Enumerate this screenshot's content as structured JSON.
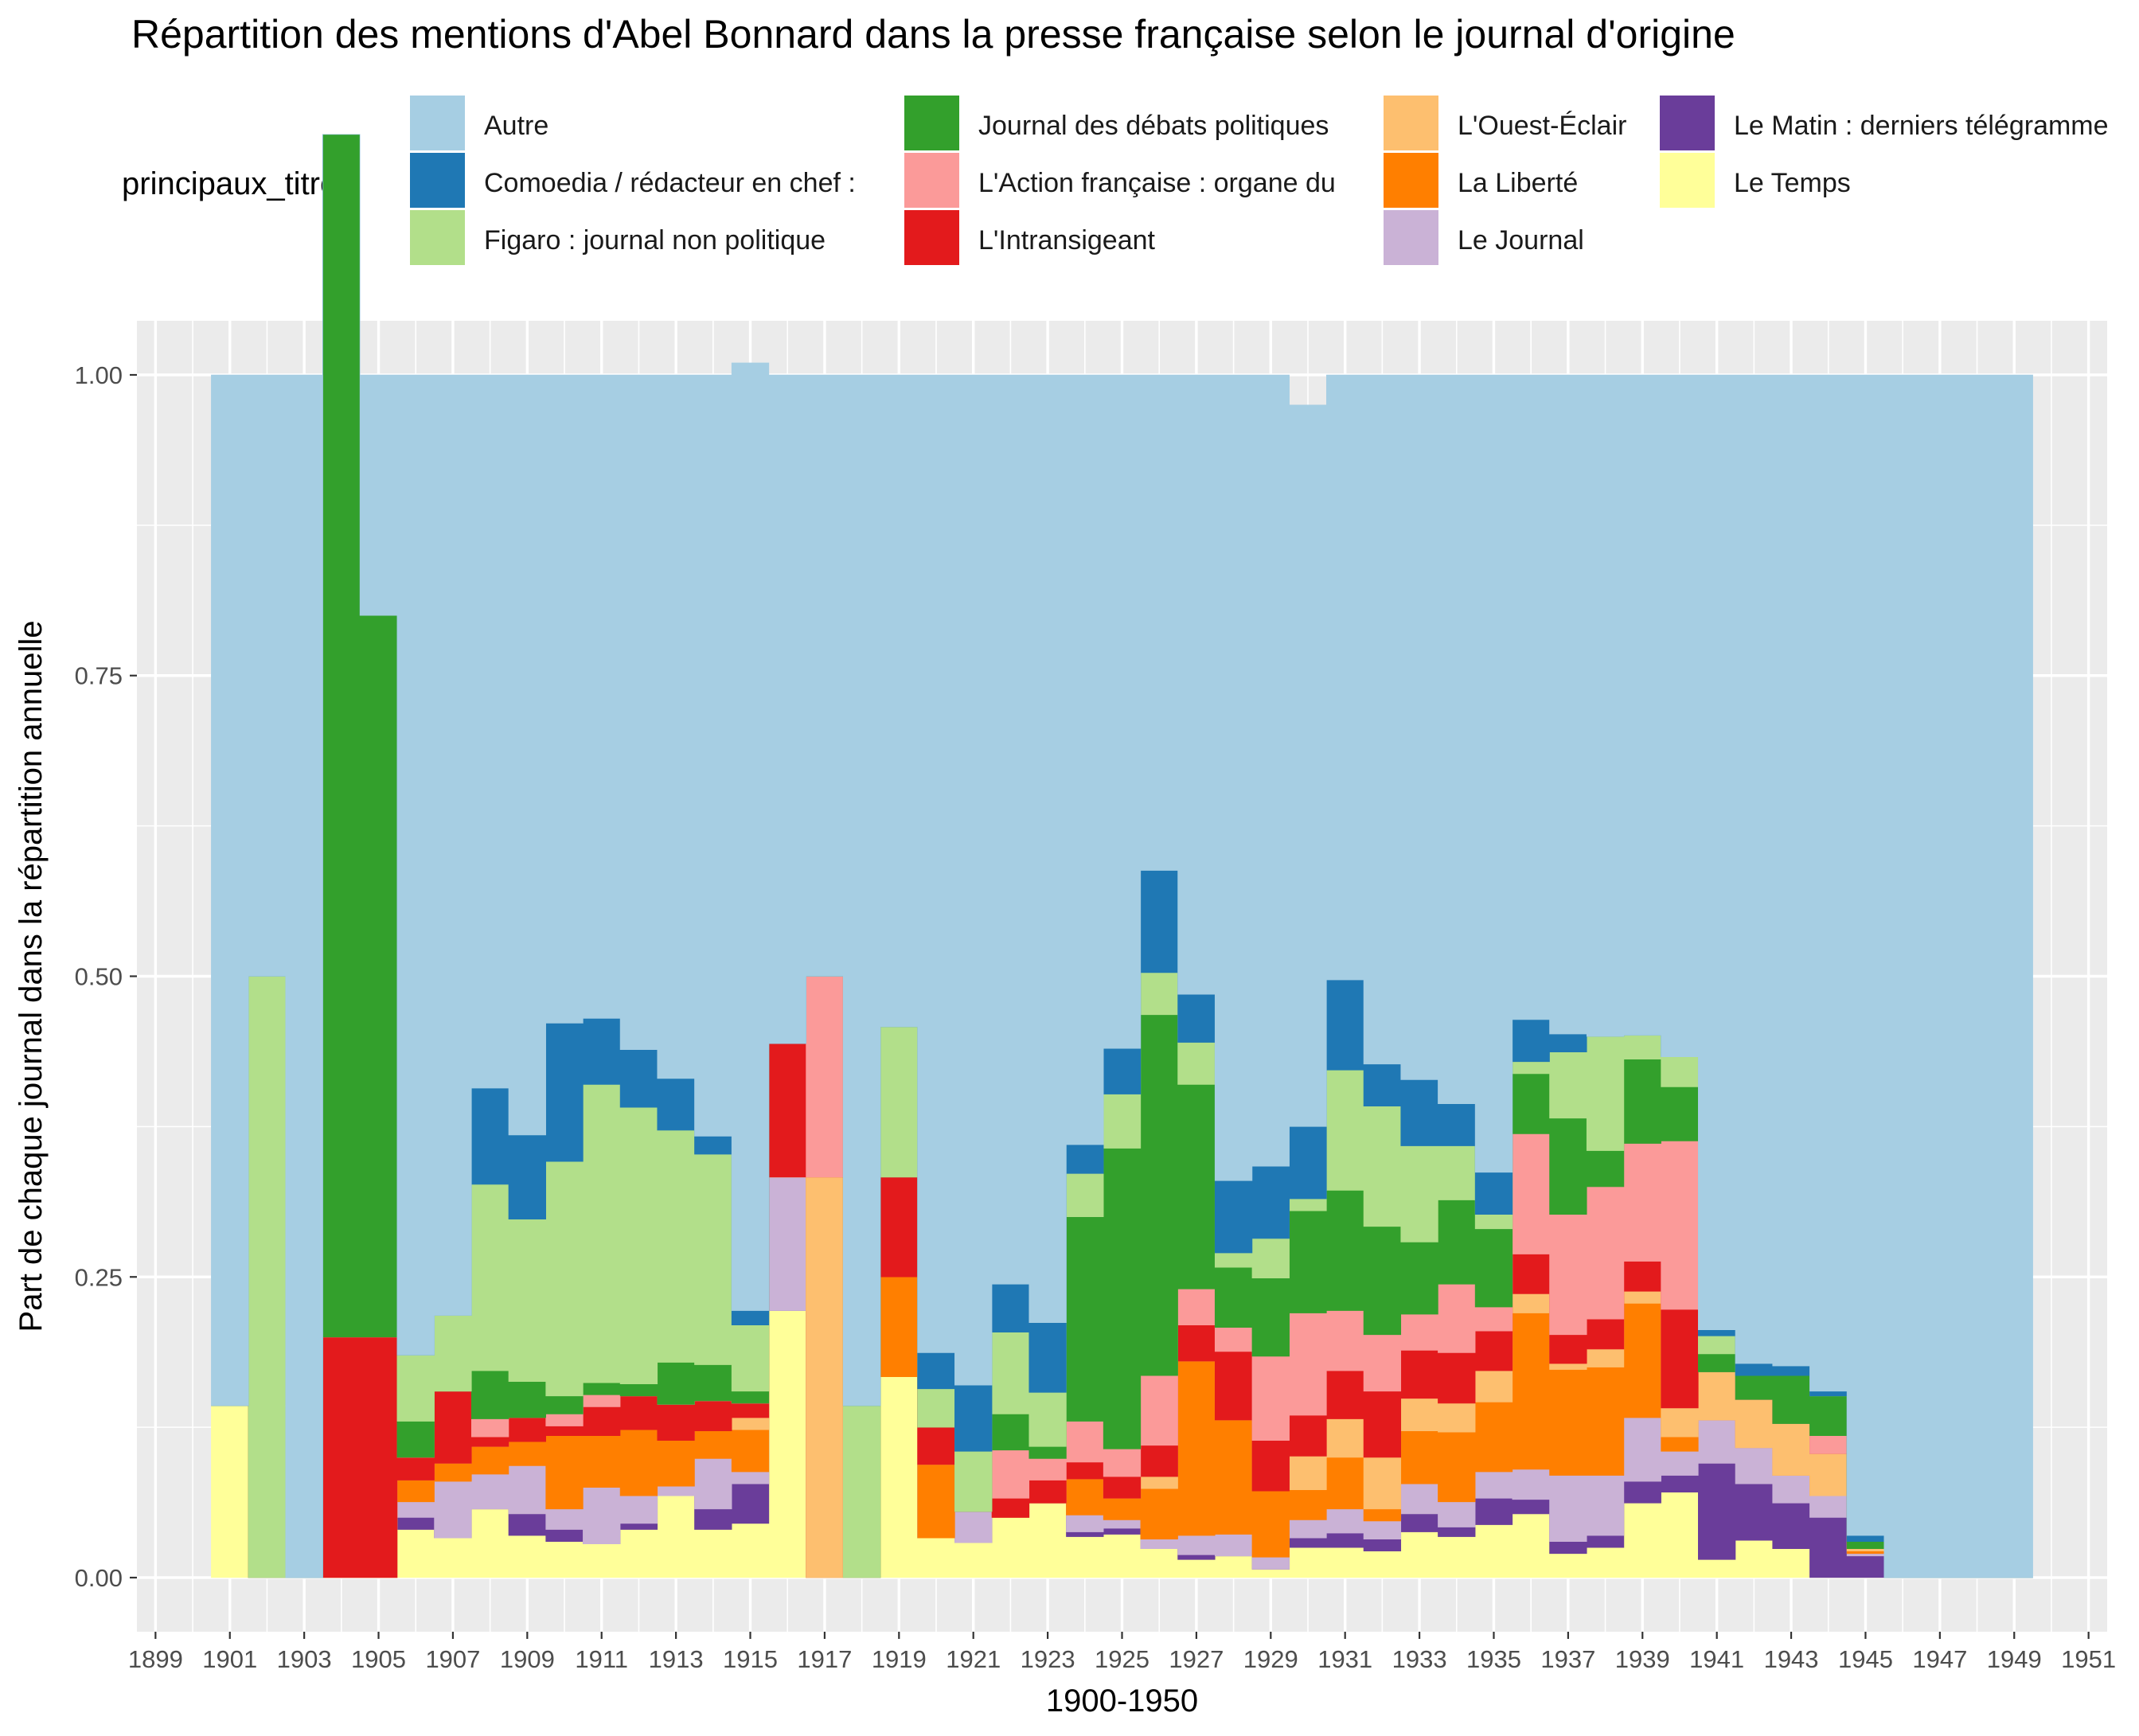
{
  "chart_data": {
    "type": "area",
    "stacked": true,
    "normalized": true,
    "title": "Répartition des mentions d'Abel Bonnard dans la presse française selon le journal d'origine",
    "xlabel": "1900-1950",
    "ylabel": "Part de chaque journal dans la répartition annuelle",
    "xlim": [
      1898.5,
      1951.5
    ],
    "ylim": [
      -0.045,
      1.045
    ],
    "x_ticks": [
      1899,
      1901,
      1903,
      1905,
      1907,
      1909,
      1911,
      1913,
      1915,
      1917,
      1919,
      1921,
      1923,
      1925,
      1927,
      1929,
      1931,
      1933,
      1935,
      1937,
      1939,
      1941,
      1943,
      1945,
      1947,
      1949,
      1951
    ],
    "y_ticks": [
      0.0,
      0.25,
      0.5,
      0.75,
      1.0
    ],
    "y_tick_labels": [
      "0.00",
      "0.25",
      "0.50",
      "0.75",
      "1.00"
    ],
    "grid": true,
    "legend_title": "principaux_titres",
    "legend_position": "top",
    "x": [
      1901,
      1902,
      1903,
      1904,
      1905,
      1906,
      1907,
      1908,
      1909,
      1910,
      1911,
      1912,
      1913,
      1914,
      1915,
      1916,
      1917,
      1918,
      1919,
      1920,
      1921,
      1922,
      1923,
      1924,
      1925,
      1926,
      1927,
      1928,
      1929,
      1930,
      1931,
      1932,
      1933,
      1934,
      1935,
      1936,
      1937,
      1938,
      1939,
      1940,
      1941,
      1942,
      1943,
      1944,
      1945,
      1946,
      1947,
      1948,
      1949
    ],
    "series": [
      {
        "name": "Le Temps",
        "color": "#FFFF99",
        "values": [
          0.143,
          0,
          0,
          0,
          0,
          0.04,
          0.033,
          0.057,
          0.035,
          0.03,
          0.028,
          0.04,
          0.068,
          0.04,
          0.045,
          0.222,
          0,
          0,
          0.167,
          0.033,
          0.029,
          0.05,
          0.062,
          0.034,
          0.036,
          0.024,
          0.015,
          0.018,
          0.007,
          0.025,
          0.025,
          0.022,
          0.038,
          0.034,
          0.044,
          0.053,
          0.02,
          0.025,
          0.062,
          0.071,
          0.015,
          0.031,
          0.024,
          0,
          0,
          0,
          0,
          0,
          0
        ]
      },
      {
        "name": "Le Matin : derniers télégramme",
        "color": "#6A3D9A",
        "values": [
          0,
          0,
          0,
          0,
          0,
          0.01,
          0,
          0,
          0.018,
          0.01,
          0,
          0.005,
          0,
          0.017,
          0.033,
          0,
          0,
          0,
          0,
          0,
          0,
          0,
          0,
          0.004,
          0.005,
          0,
          0.004,
          0,
          0,
          0.008,
          0.012,
          0.01,
          0.015,
          0.008,
          0.022,
          0.012,
          0.01,
          0.01,
          0.018,
          0.014,
          0.08,
          0.047,
          0.038,
          0.05,
          0.018,
          0,
          0,
          0,
          0
        ]
      },
      {
        "name": "Le Journal",
        "color": "#CAB2D6",
        "values": [
          0,
          0,
          0,
          0,
          0,
          0.013,
          0.047,
          0.029,
          0.04,
          0.017,
          0.047,
          0.023,
          0.008,
          0.042,
          0.01,
          0.111,
          0,
          0,
          0,
          0,
          0.026,
          0,
          0,
          0.014,
          0.007,
          0.008,
          0.016,
          0.018,
          0.01,
          0.015,
          0.02,
          0.015,
          0.025,
          0.021,
          0.022,
          0.025,
          0.055,
          0.05,
          0.053,
          0.02,
          0.036,
          0.03,
          0.023,
          0.018,
          0.002,
          0,
          0,
          0,
          0
        ]
      },
      {
        "name": "La Liberté",
        "color": "#FF7F00",
        "values": [
          0,
          0,
          0,
          0,
          0,
          0.018,
          0.015,
          0.023,
          0.02,
          0.061,
          0.043,
          0.055,
          0.038,
          0.023,
          0.035,
          0,
          0,
          0,
          0.083,
          0.061,
          0,
          0,
          0,
          0.03,
          0.018,
          0.042,
          0.145,
          0.095,
          0.055,
          0.025,
          0.043,
          0.01,
          0.044,
          0.058,
          0.058,
          0.13,
          0.088,
          0.09,
          0.095,
          0.012,
          0,
          0,
          0,
          0,
          0.002,
          0,
          0,
          0,
          0
        ]
      },
      {
        "name": "L'Ouest-Éclair",
        "color": "#FDBF6F",
        "values": [
          0,
          0,
          0,
          0,
          0,
          0,
          0,
          0,
          0,
          0,
          0,
          0,
          0,
          0,
          0.01,
          0,
          0.333,
          0,
          0,
          0,
          0,
          0,
          0,
          0,
          0,
          0.01,
          0,
          0,
          0,
          0.028,
          0.032,
          0.043,
          0.027,
          0.024,
          0.026,
          0.016,
          0.005,
          0.015,
          0.01,
          0.024,
          0.04,
          0.04,
          0.043,
          0.035,
          0.002,
          0,
          0,
          0,
          0
        ]
      },
      {
        "name": "L'Intransigeant",
        "color": "#E31A1C",
        "values": [
          0,
          0,
          0,
          0.2,
          0.2,
          0.019,
          0.06,
          0.008,
          0.02,
          0.008,
          0.024,
          0.028,
          0.03,
          0.025,
          0.012,
          0.111,
          0,
          0,
          0.083,
          0.031,
          0,
          0.016,
          0.019,
          0.014,
          0.018,
          0.026,
          0.03,
          0.057,
          0.042,
          0.034,
          0.04,
          0.055,
          0.04,
          0.042,
          0.033,
          0.033,
          0.024,
          0.025,
          0.025,
          0.082,
          0,
          0,
          0,
          0,
          0,
          0,
          0,
          0,
          0
        ]
      },
      {
        "name": "L'Action française : organe du",
        "color": "#FB9A99",
        "values": [
          0,
          0,
          0,
          0,
          0,
          0,
          0,
          0.015,
          0,
          0.01,
          0.01,
          0,
          0,
          0,
          0,
          0,
          0.167,
          0,
          0,
          0,
          0,
          0.04,
          0.018,
          0.034,
          0.023,
          0.058,
          0.03,
          0.02,
          0.07,
          0.085,
          0.05,
          0.047,
          0.03,
          0.057,
          0.02,
          0.1,
          0.1,
          0.11,
          0.098,
          0.14,
          0,
          0,
          0,
          0.015,
          0,
          0,
          0,
          0,
          0
        ]
      },
      {
        "name": "L'Action française : organe du",
        "color": "#FB9A99",
        "values": [
          0,
          0,
          0,
          0,
          0,
          0,
          0,
          0,
          0,
          0,
          0,
          0,
          0,
          0,
          0,
          0,
          0,
          0,
          0,
          0,
          0,
          0,
          0,
          0,
          0,
          0,
          0,
          0,
          0,
          0,
          0,
          0,
          0,
          0,
          0,
          0,
          0,
          0,
          0,
          0,
          0,
          0,
          0,
          0,
          0,
          0,
          0,
          0,
          0
        ]
      },
      {
        "name": "Journal des débats politiques",
        "color": "#33A02C",
        "values": [
          0,
          0,
          0,
          1.0,
          0.6,
          0.03,
          0,
          0.04,
          0.03,
          0.015,
          0.01,
          0.01,
          0.035,
          0.03,
          0.01,
          0,
          0,
          0,
          0,
          0,
          0,
          0.03,
          0.01,
          0.17,
          0.25,
          0.3,
          0.17,
          0.05,
          0.065,
          0.085,
          0.1,
          0.09,
          0.06,
          0.07,
          0.065,
          0.05,
          0.08,
          0.03,
          0.07,
          0.045,
          0.015,
          0.02,
          0.04,
          0.033,
          0.006,
          0,
          0,
          0,
          0
        ]
      },
      {
        "name": "Figaro : journal non politique",
        "color": "#B2DF8A",
        "values": [
          0,
          0.5,
          0,
          0,
          0,
          0.055,
          0.063,
          0.155,
          0.135,
          0.195,
          0.248,
          0.23,
          0.193,
          0.175,
          0.055,
          0,
          0,
          0.143,
          0.125,
          0.032,
          0.05,
          0.068,
          0.045,
          0.036,
          0.045,
          0.035,
          0.035,
          0.012,
          0.033,
          0.01,
          0.1,
          0.1,
          0.08,
          0.045,
          0.012,
          0.01,
          0.055,
          0.095,
          0.02,
          0.025,
          0.015,
          0,
          0,
          0,
          0,
          0,
          0,
          0,
          0
        ]
      },
      {
        "name": "Comoedia / rédacteur en chef :",
        "color": "#1F78B4",
        "values": [
          0,
          0,
          0,
          0,
          0,
          0,
          0,
          0.08,
          0.07,
          0.115,
          0.055,
          0.048,
          0.043,
          0.015,
          0.012,
          0,
          0,
          0,
          0,
          0.03,
          0.055,
          0.04,
          0.058,
          0.024,
          0.038,
          0.085,
          0.04,
          0.06,
          0.06,
          0.06,
          0.075,
          0.035,
          0.055,
          0.035,
          0.035,
          0.035,
          0.015,
          0,
          0,
          0,
          0.005,
          0.01,
          0.008,
          0.004,
          0.005,
          0,
          0,
          0,
          0
        ]
      },
      {
        "name": "Autre",
        "color": "#A6CEE3",
        "values": [
          0.857,
          0.5,
          1.0,
          0,
          0.2,
          0.815,
          0.782,
          0.593,
          0.632,
          0.539,
          0.535,
          0.561,
          0.585,
          0.633,
          0.788,
          0.556,
          0.5,
          0.857,
          0.542,
          0.813,
          0.84,
          0.756,
          0.788,
          0.64,
          0.56,
          0.412,
          0.515,
          0.67,
          0.658,
          0.6,
          0.503,
          0.573,
          0.586,
          0.606,
          0.663,
          0.536,
          0.548,
          0.55,
          0.549,
          0.567,
          0.794,
          0.822,
          0.824,
          0.845,
          0.965,
          1.0,
          1.0,
          1.0,
          1.0
        ]
      }
    ],
    "legend": [
      [
        "Autre",
        "#A6CEE3"
      ],
      [
        "Comoedia / rédacteur en chef :",
        "#1F78B4"
      ],
      [
        "Figaro : journal non politique",
        "#B2DF8A"
      ],
      [
        "Journal des débats politiques",
        "#33A02C"
      ],
      [
        "L'Action française : organe du",
        "#FB9A99"
      ],
      [
        "L'Intransigeant",
        "#E31A1C"
      ],
      [
        "L'Ouest-Éclair",
        "#FDBF6F"
      ],
      [
        "La Liberté",
        "#FF7F00"
      ],
      [
        "Le Journal",
        "#CAB2D6"
      ],
      [
        "Le Matin : derniers télégramme",
        "#6A3D9A"
      ],
      [
        "Le Temps",
        "#FFFF99"
      ]
    ],
    "panel_color": "#EBEBEB",
    "grid_color": "#FFFFFF"
  }
}
